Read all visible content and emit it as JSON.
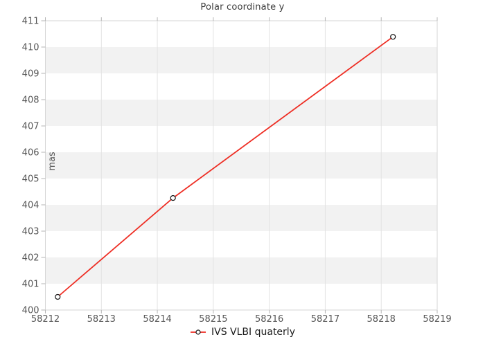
{
  "chart_data": {
    "type": "line",
    "title": "Polar coordinate y",
    "xlabel": "",
    "ylabel": "mas",
    "legend": {
      "label": "IVS VLBI quaterly",
      "position": "bottom-center"
    },
    "series": [
      {
        "name": "IVS VLBI quaterly",
        "color": "#ee2e24",
        "marker": "open-circle",
        "marker_fill": "#ffffff",
        "marker_edge_color": "#111111",
        "points": [
          {
            "x": 58212.22,
            "y": 400.5
          },
          {
            "x": 58214.28,
            "y": 404.26
          },
          {
            "x": 58218.21,
            "y": 410.39
          }
        ]
      }
    ],
    "xlim": [
      58212,
      58219
    ],
    "ylim": [
      400,
      411
    ],
    "x_ticks": [
      58212,
      58213,
      58214,
      58215,
      58216,
      58217,
      58218,
      58219
    ],
    "y_ticks": [
      400,
      401,
      402,
      403,
      404,
      405,
      406,
      407,
      408,
      409,
      410,
      411
    ],
    "grid": {
      "vertical_gridlines": true,
      "horizontal_striped_bands": true
    },
    "colors": {
      "band_light": "#ffffff",
      "band_dark": "#f2f2f2",
      "gridline": "#e3e3e3",
      "border": "#d6d6d6",
      "tick": "#b5b5b5",
      "tick_label": "#555555",
      "title": "#3a3a3a",
      "axis_label": "#555555",
      "legend_text": "#1a1a1a"
    }
  }
}
